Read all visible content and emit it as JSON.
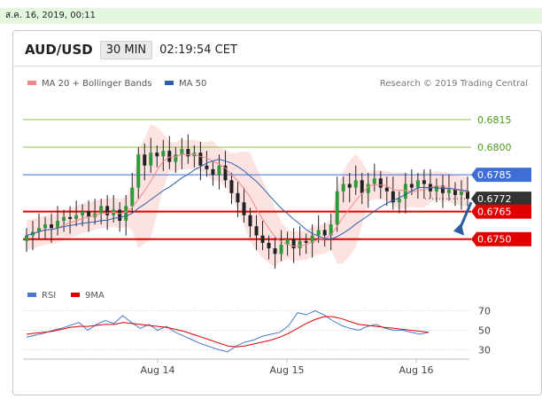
{
  "datetime": "ส.ค. 16, 2019, 00:11",
  "header": {
    "pair": "AUD/USD",
    "timeframe": "30 MIN",
    "time": "02:19:54 CET"
  },
  "legend": {
    "ma20": "MA 20 + Bollinger Bands",
    "ma50": "MA 50",
    "credit": "Research © 2019 Trading Central"
  },
  "rsi_legend": {
    "rsi": "RSI",
    "ma9": "9MA"
  },
  "colors": {
    "up_candle": "#2e9a3a",
    "down_candle": "#222222",
    "bollinger_fill": "#fde2e2",
    "ma20": "#f08a8a",
    "ma50": "#2f5fa8",
    "support": "#e00000",
    "resistance_blue": "#3f6fd6",
    "target_green": "#8bc34a",
    "arrow": "#2b5c9e"
  },
  "chart_data": [
    {
      "type": "candlestick",
      "title": "AUD/USD",
      "ylim": [
        0.6733,
        0.6826
      ],
      "x_ticks": [
        "Aug 14",
        "Aug 15",
        "Aug 16"
      ],
      "levels": [
        {
          "label": "0.6815",
          "value": 0.6815,
          "kind": "target"
        },
        {
          "label": "0.6800",
          "value": 0.68,
          "kind": "target"
        },
        {
          "label": "0.6785",
          "value": 0.6785,
          "kind": "resistance"
        },
        {
          "label": "0.6772",
          "value": 0.6772,
          "kind": "last"
        },
        {
          "label": "0.6765",
          "value": 0.6765,
          "kind": "pivot"
        },
        {
          "label": "0.6750",
          "value": 0.675,
          "kind": "support"
        }
      ],
      "close_approx": [
        0.6752,
        0.6754,
        0.6756,
        0.6758,
        0.6756,
        0.676,
        0.6762,
        0.6761,
        0.6763,
        0.6765,
        0.6762,
        0.6764,
        0.6768,
        0.6763,
        0.6766,
        0.676,
        0.6768,
        0.6778,
        0.6796,
        0.679,
        0.6797,
        0.6795,
        0.6798,
        0.6792,
        0.6796,
        0.6799,
        0.6795,
        0.6797,
        0.679,
        0.6788,
        0.6785,
        0.679,
        0.6782,
        0.6775,
        0.677,
        0.6763,
        0.6757,
        0.6752,
        0.6748,
        0.6745,
        0.6742,
        0.6747,
        0.675,
        0.6745,
        0.6749,
        0.6748,
        0.6752,
        0.6755,
        0.6752,
        0.6758,
        0.6776,
        0.678,
        0.6778,
        0.6782,
        0.6775,
        0.678,
        0.6783,
        0.6778,
        0.6776,
        0.677,
        0.6772,
        0.678,
        0.6778,
        0.6782,
        0.678,
        0.6776,
        0.6779,
        0.6775,
        0.6777,
        0.6774,
        0.6776,
        0.6772
      ]
    },
    {
      "type": "line",
      "title": "RSI",
      "ylim": [
        25,
        75
      ],
      "y_ticks": [
        "70",
        "50",
        "30"
      ],
      "series": [
        {
          "name": "RSI",
          "values": [
            43,
            45,
            47,
            50,
            52,
            55,
            58,
            50,
            56,
            60,
            57,
            65,
            58,
            52,
            56,
            50,
            54,
            48,
            44,
            40,
            36,
            33,
            30,
            28,
            34,
            38,
            40,
            44,
            46,
            48,
            55,
            68,
            66,
            70,
            66,
            60,
            55,
            52,
            50,
            54,
            56,
            52,
            50,
            50,
            48,
            46,
            48
          ]
        },
        {
          "name": "9MA",
          "values": [
            46,
            47,
            48,
            49,
            51,
            53,
            54,
            54,
            55,
            56,
            56,
            58,
            57,
            56,
            55,
            54,
            53,
            51,
            49,
            46,
            43,
            40,
            37,
            34,
            33,
            34,
            36,
            38,
            40,
            43,
            47,
            52,
            57,
            61,
            64,
            64,
            62,
            59,
            56,
            55,
            54,
            53,
            52,
            51,
            50,
            49,
            48
          ]
        }
      ]
    }
  ]
}
